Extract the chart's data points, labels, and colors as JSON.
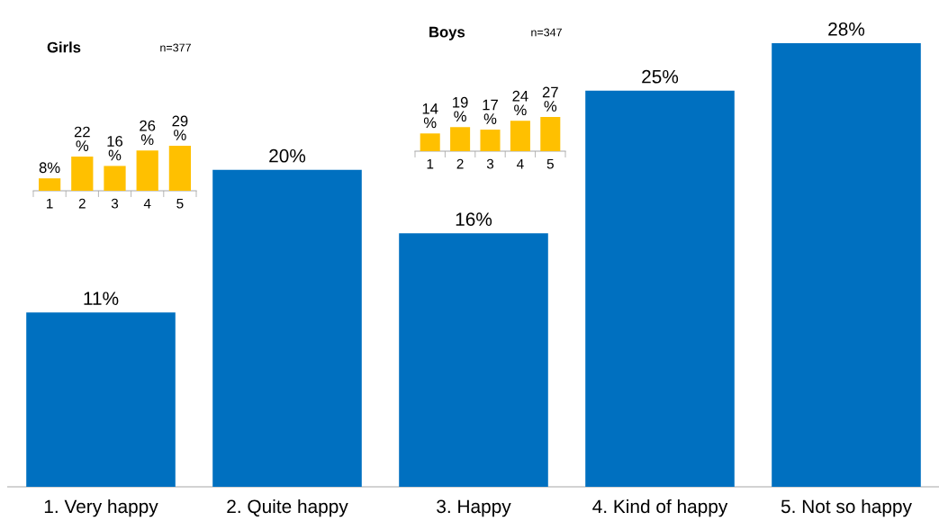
{
  "chart_data": [
    {
      "type": "bar",
      "categories": [
        "1. Very happy",
        "2. Quite happy",
        "3. Happy",
        "4. Kind of happy",
        "5. Not so happy"
      ],
      "values": [
        11,
        20,
        16,
        25,
        28
      ],
      "value_labels": [
        "11%",
        "20%",
        "16%",
        "25%",
        "28%"
      ],
      "color": "#0070c0",
      "tick_labels": "x",
      "grid": false,
      "legend": false
    },
    {
      "type": "bar",
      "title": "Girls",
      "annotations": [
        "n=377"
      ],
      "categories": [
        "1",
        "2",
        "3",
        "4",
        "5"
      ],
      "values": [
        8,
        22,
        16,
        26,
        29
      ],
      "value_labels": [
        "8%",
        "22\n%",
        "16\n%",
        "26\n%",
        "29\n%"
      ],
      "color": "#ffc000",
      "tick_labels": "x",
      "grid": false,
      "legend": false
    },
    {
      "type": "bar",
      "title": "Boys",
      "annotations": [
        "n=347"
      ],
      "categories": [
        "1",
        "2",
        "3",
        "4",
        "5"
      ],
      "values": [
        14,
        19,
        17,
        24,
        27
      ],
      "value_labels": [
        "14\n%",
        "19\n%",
        "17\n%",
        "24\n%",
        "27\n%"
      ],
      "color": "#ffc000",
      "tick_labels": "x",
      "grid": false,
      "legend": false
    }
  ]
}
